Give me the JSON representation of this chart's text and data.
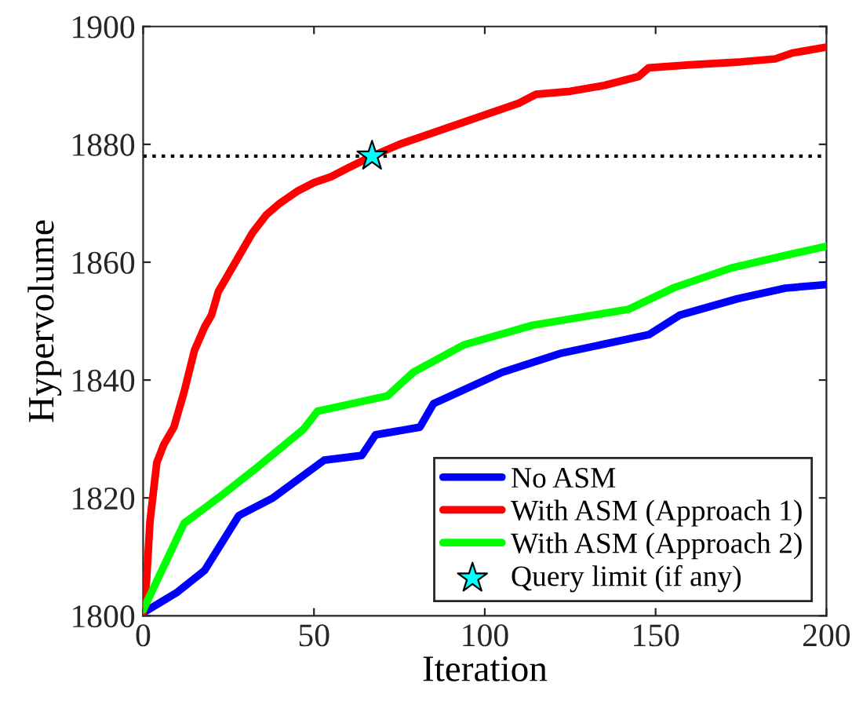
{
  "chart_data": {
    "type": "line",
    "xlabel": "Iteration",
    "ylabel": "Hypervolume",
    "xlim": [
      0,
      200
    ],
    "xticks": [
      0,
      50,
      100,
      150,
      200
    ],
    "ylim": [
      1800,
      1900
    ],
    "yticks": [
      1800,
      1820,
      1840,
      1860,
      1880,
      1900
    ],
    "grid": false,
    "legend": "bottom right",
    "line_style": "solid",
    "series": [
      {
        "name": "No ASM",
        "color": "#0000ff",
        "x": [
          0,
          10,
          18,
          28,
          38,
          53,
          64,
          68,
          81,
          85,
          105,
          122,
          148,
          157,
          174,
          188,
          200
        ],
        "values": [
          1800.5,
          1804,
          1807.7,
          1817,
          1820,
          1826.4,
          1827.2,
          1830.7,
          1832,
          1836,
          1841.3,
          1844.5,
          1847.7,
          1851,
          1853.8,
          1855.6,
          1856.2
        ]
      },
      {
        "name": "With ASM (Approach 1)",
        "color": "#ff0000",
        "x": [
          0,
          1,
          2,
          4,
          6,
          9,
          12,
          15,
          18,
          20,
          22,
          25,
          28,
          32,
          36,
          40,
          45,
          50,
          55,
          60,
          67,
          75,
          80,
          90,
          100,
          110,
          115,
          125,
          135,
          145,
          148,
          160,
          175,
          185,
          190,
          200
        ],
        "values": [
          1800.5,
          1806,
          1816,
          1826,
          1829,
          1832,
          1838,
          1845,
          1849,
          1851,
          1855,
          1858,
          1861,
          1865,
          1868,
          1870,
          1872,
          1873.5,
          1874.5,
          1876,
          1878,
          1880,
          1881,
          1883,
          1885,
          1887,
          1888.5,
          1889,
          1890,
          1891.5,
          1893,
          1893.5,
          1894,
          1894.5,
          1895.5,
          1896.5
        ]
      },
      {
        "name": "With ASM (Approach 2)",
        "color": "#00ff00",
        "x": [
          0,
          12,
          22,
          33,
          47,
          51,
          71.5,
          79,
          94,
          114,
          142,
          155.5,
          172,
          189,
          200
        ],
        "values": [
          1801,
          1815.7,
          1820,
          1825,
          1831.7,
          1834.7,
          1837.3,
          1841.3,
          1846,
          1849.3,
          1852,
          1855.7,
          1859,
          1861.3,
          1862.7
        ]
      },
      {
        "name": "Query limit (if any)",
        "type": "scatter",
        "marker": "star",
        "color": "#00ffff",
        "x": [
          67
        ],
        "values": [
          1878
        ]
      }
    ],
    "ref_lines": [
      {
        "axis": "y",
        "value": 1878,
        "color": "#000000",
        "line_style": "dotted"
      }
    ]
  }
}
